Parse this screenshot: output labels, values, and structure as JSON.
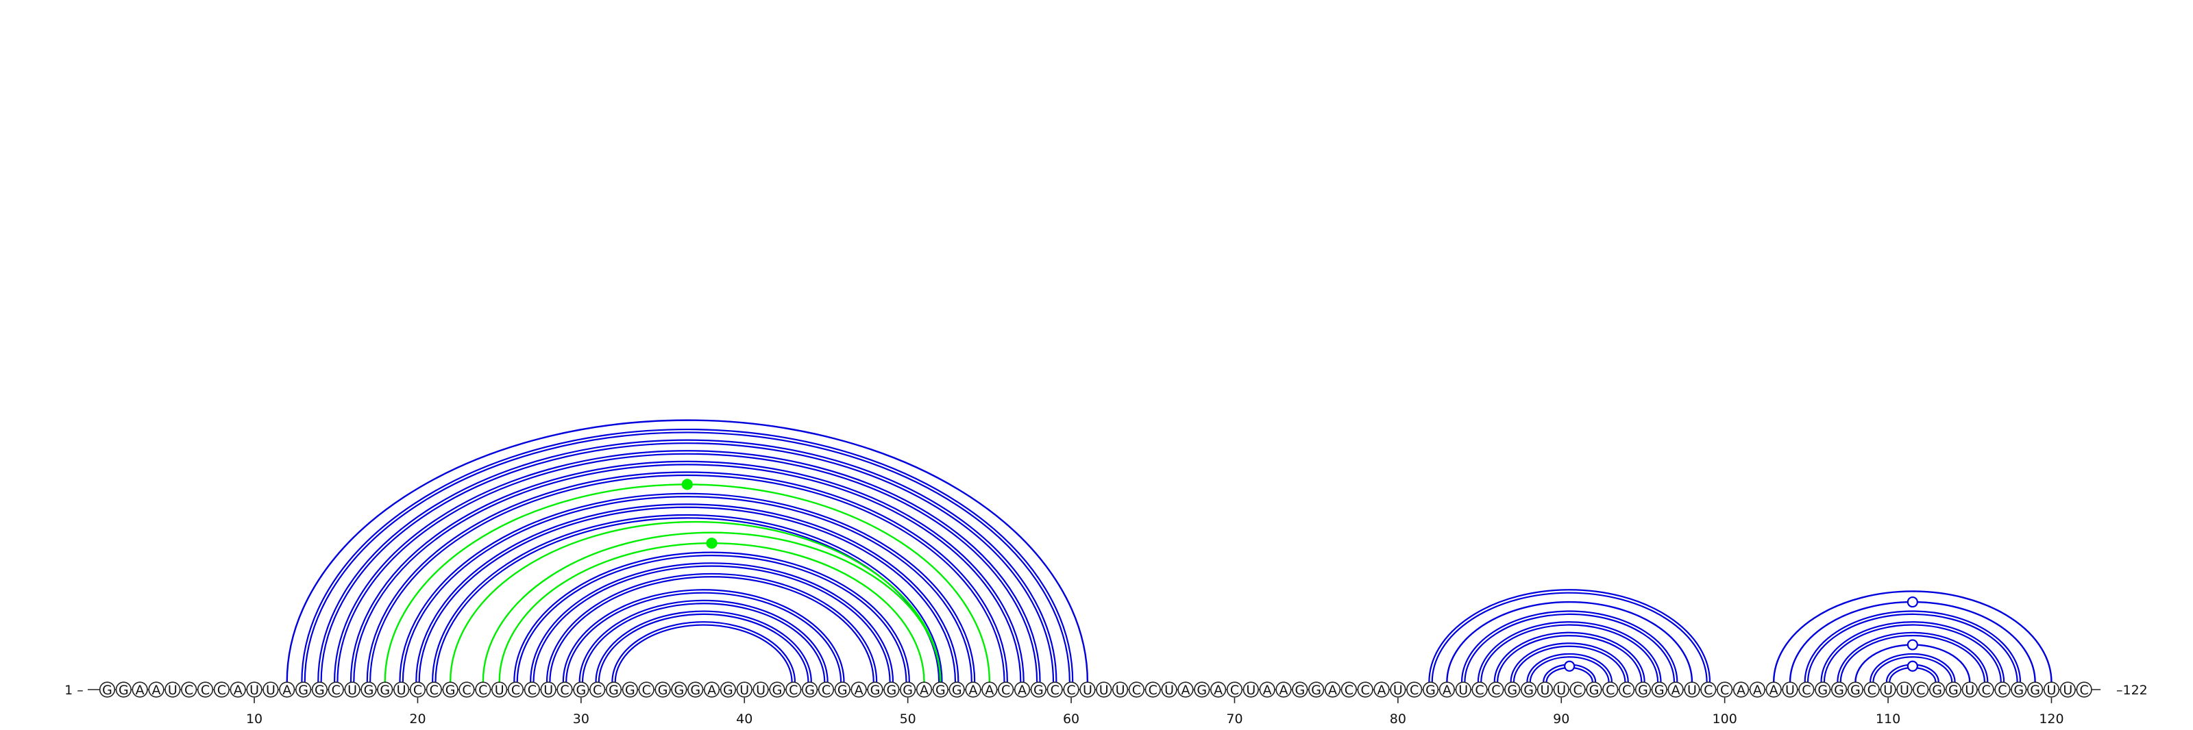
{
  "sequence": "GGAAUCCCAUUAGGCUGGUCCGCCUCCUCGCGGCGGGAGUUGCGCGAGGGAGGAACAGCCUUUCCUAGACUAAGGACCAUCGAUCCGGUUCGCCGGAUCCAAAUCGGGCUUCGGUCCGGUUC",
  "start_label": "1",
  "end_label": "122",
  "tick_labels": [
    "10",
    "20",
    "30",
    "40",
    "50",
    "60",
    "70",
    "80",
    "90",
    "100",
    "110",
    "120"
  ],
  "colors": {
    "primary_arc": "#0000dd",
    "secondary_arc": "#00ee00",
    "text": "#111111"
  },
  "chart_data": {
    "type": "arc-diagram",
    "sequence_length": 122,
    "ticks": [
      10,
      20,
      30,
      40,
      50,
      60,
      70,
      80,
      90,
      100,
      110,
      120
    ],
    "pairs": [
      {
        "i": 12,
        "j": 61,
        "color": "blue",
        "line": "single"
      },
      {
        "i": 13,
        "j": 60,
        "color": "blue",
        "line": "double"
      },
      {
        "i": 14,
        "j": 59,
        "color": "blue",
        "line": "double"
      },
      {
        "i": 15,
        "j": 58,
        "color": "blue",
        "line": "double"
      },
      {
        "i": 16,
        "j": 57,
        "color": "blue",
        "line": "double"
      },
      {
        "i": 17,
        "j": 56,
        "color": "blue",
        "line": "double"
      },
      {
        "i": 18,
        "j": 55,
        "color": "green",
        "line": "single"
      },
      {
        "i": 19,
        "j": 54,
        "color": "blue",
        "line": "double"
      },
      {
        "i": 20,
        "j": 53,
        "color": "blue",
        "line": "double"
      },
      {
        "i": 21,
        "j": 52,
        "color": "blue",
        "line": "double"
      },
      {
        "i": 22,
        "j": 52,
        "color": "green",
        "line": "single"
      },
      {
        "i": 24,
        "j": 52,
        "color": "green",
        "line": "single"
      },
      {
        "i": 25,
        "j": 51,
        "color": "green",
        "line": "single"
      },
      {
        "i": 26,
        "j": 50,
        "color": "blue",
        "line": "double"
      },
      {
        "i": 27,
        "j": 49,
        "color": "blue",
        "line": "double"
      },
      {
        "i": 28,
        "j": 48,
        "color": "blue",
        "line": "double"
      },
      {
        "i": 29,
        "j": 46,
        "color": "blue",
        "line": "double"
      },
      {
        "i": 30,
        "j": 45,
        "color": "blue",
        "line": "double"
      },
      {
        "i": 31,
        "j": 44,
        "color": "blue",
        "line": "double"
      },
      {
        "i": 32,
        "j": 43,
        "color": "blue",
        "line": "double"
      },
      {
        "i": 82,
        "j": 99,
        "color": "blue",
        "line": "double"
      },
      {
        "i": 83,
        "j": 98,
        "color": "blue",
        "line": "single"
      },
      {
        "i": 84,
        "j": 97,
        "color": "blue",
        "line": "double"
      },
      {
        "i": 85,
        "j": 96,
        "color": "blue",
        "line": "double"
      },
      {
        "i": 86,
        "j": 95,
        "color": "blue",
        "line": "double"
      },
      {
        "i": 87,
        "j": 94,
        "color": "blue",
        "line": "double"
      },
      {
        "i": 88,
        "j": 93,
        "color": "blue",
        "line": "double"
      },
      {
        "i": 89,
        "j": 92,
        "color": "blue",
        "line": "double"
      },
      {
        "i": 103,
        "j": 120,
        "color": "blue",
        "line": "single"
      },
      {
        "i": 104,
        "j": 119,
        "color": "blue",
        "line": "single"
      },
      {
        "i": 105,
        "j": 118,
        "color": "blue",
        "line": "double"
      },
      {
        "i": 106,
        "j": 117,
        "color": "blue",
        "line": "double"
      },
      {
        "i": 107,
        "j": 116,
        "color": "blue",
        "line": "double"
      },
      {
        "i": 108,
        "j": 115,
        "color": "blue",
        "line": "single"
      },
      {
        "i": 109,
        "j": 114,
        "color": "blue",
        "line": "double"
      },
      {
        "i": 110,
        "j": 113,
        "color": "blue",
        "line": "double"
      }
    ],
    "markers": [
      {
        "pair_i": 18,
        "pair_j": 55,
        "style": "filled",
        "color": "green"
      },
      {
        "pair_i": 25,
        "pair_j": 51,
        "style": "filled",
        "color": "green"
      },
      {
        "pair_i": 89,
        "pair_j": 92,
        "style": "open",
        "color": "blue"
      },
      {
        "pair_i": 104,
        "pair_j": 119,
        "style": "open",
        "color": "blue"
      },
      {
        "pair_i": 108,
        "pair_j": 115,
        "style": "open",
        "color": "blue"
      },
      {
        "pair_i": 110,
        "pair_j": 113,
        "style": "open",
        "color": "blue"
      }
    ]
  }
}
